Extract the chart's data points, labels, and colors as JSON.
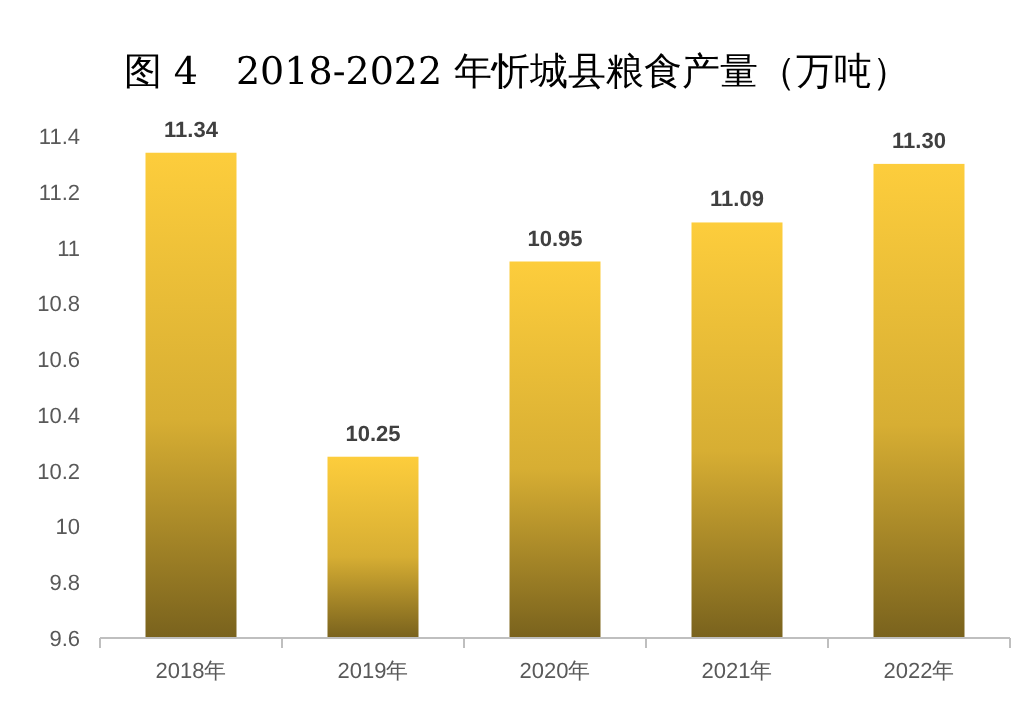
{
  "chart_data": {
    "type": "bar",
    "title": "图 4　2018-2022 年忻城县粮食产量（万吨）",
    "categories": [
      "2018年",
      "2019年",
      "2020年",
      "2021年",
      "2022年"
    ],
    "values": [
      11.34,
      10.25,
      10.95,
      11.09,
      11.3
    ],
    "value_labels": [
      "11.34",
      "10.25",
      "10.95",
      "11.09",
      "11.30"
    ],
    "color": "#fdcd3c",
    "ylim": [
      9.6,
      11.4
    ],
    "yticks": [
      9.6,
      9.8,
      10,
      10.2,
      10.4,
      10.6,
      10.8,
      11,
      11.2,
      11.4
    ]
  }
}
